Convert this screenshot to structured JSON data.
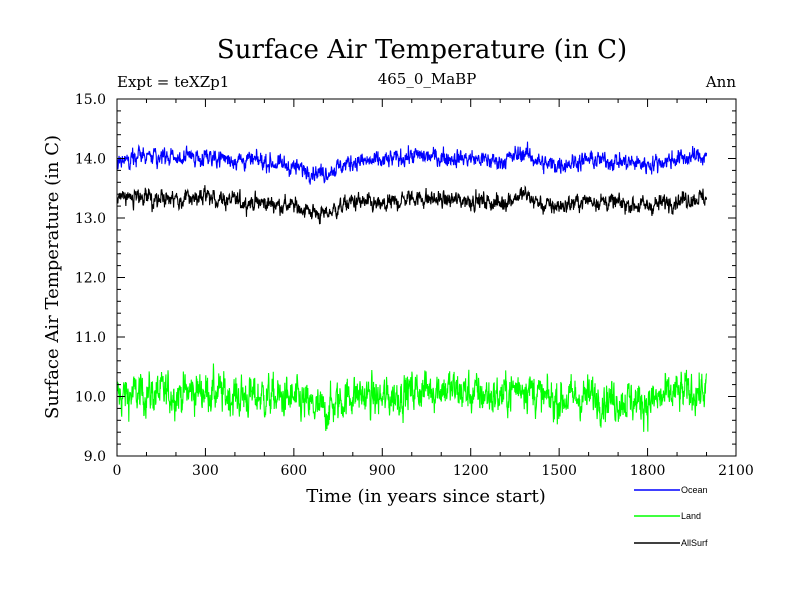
{
  "chart_data": {
    "type": "line",
    "title": "Surface Air Temperature (in C)",
    "subtitle_left": "Expt = teXZp1",
    "subtitle_center": "465_0_MaBP",
    "subtitle_right": "Ann",
    "xlabel": "Time (in years since start)",
    "ylabel": "Surface Air Temperature (in C)",
    "xlim": [
      0,
      2100
    ],
    "ylim": [
      9.0,
      15.0
    ],
    "x_ticks": [
      0,
      300,
      600,
      900,
      1200,
      1500,
      1800,
      2100
    ],
    "x_tick_labels": [
      "0",
      "300",
      "600",
      "900",
      "1200",
      "1500",
      "1800",
      "2100"
    ],
    "y_ticks": [
      9,
      10,
      11,
      12,
      13,
      14,
      15
    ],
    "y_tick_labels": [
      "9.0",
      "10.0",
      "11.0",
      "12.0",
      "13.0",
      "14.0",
      "15.0"
    ],
    "grid": false,
    "legend_position": "bottom-right, below axes",
    "series": [
      {
        "name": "Ocean",
        "color": "#0000ff",
        "x_start": 0,
        "x_end": 2000,
        "n_points": 2000,
        "mean": 13.98,
        "noise_amplitude": 0.15,
        "anchors": [
          [
            0,
            13.95
          ],
          [
            100,
            14.05
          ],
          [
            200,
            14.0
          ],
          [
            300,
            14.05
          ],
          [
            400,
            13.98
          ],
          [
            500,
            13.95
          ],
          [
            600,
            13.85
          ],
          [
            700,
            13.75
          ],
          [
            800,
            13.95
          ],
          [
            900,
            13.95
          ],
          [
            1000,
            14.05
          ],
          [
            1100,
            14.02
          ],
          [
            1200,
            14.0
          ],
          [
            1300,
            13.95
          ],
          [
            1380,
            14.1
          ],
          [
            1450,
            13.9
          ],
          [
            1500,
            13.9
          ],
          [
            1600,
            13.98
          ],
          [
            1700,
            13.95
          ],
          [
            1800,
            13.9
          ],
          [
            1900,
            14.0
          ],
          [
            2000,
            14.05
          ]
        ]
      },
      {
        "name": "Land",
        "color": "#00ff00",
        "x_start": 0,
        "x_end": 2000,
        "n_points": 2000,
        "mean": 10.02,
        "noise_amplitude": 0.35,
        "anchors": [
          [
            0,
            10.0
          ],
          [
            100,
            10.05
          ],
          [
            200,
            10.05
          ],
          [
            300,
            10.1
          ],
          [
            400,
            10.0
          ],
          [
            500,
            10.0
          ],
          [
            600,
            9.95
          ],
          [
            700,
            9.75
          ],
          [
            800,
            10.05
          ],
          [
            900,
            9.95
          ],
          [
            1000,
            10.1
          ],
          [
            1100,
            10.15
          ],
          [
            1200,
            10.05
          ],
          [
            1300,
            10.0
          ],
          [
            1380,
            10.2
          ],
          [
            1450,
            9.95
          ],
          [
            1500,
            9.95
          ],
          [
            1600,
            10.0
          ],
          [
            1700,
            9.95
          ],
          [
            1800,
            9.9
          ],
          [
            1900,
            10.05
          ],
          [
            2000,
            10.1
          ]
        ]
      },
      {
        "name": "AllSurf",
        "color": "#000000",
        "x_start": 0,
        "x_end": 2000,
        "n_points": 2000,
        "mean": 13.28,
        "noise_amplitude": 0.15,
        "anchors": [
          [
            0,
            13.3
          ],
          [
            100,
            13.35
          ],
          [
            200,
            13.3
          ],
          [
            300,
            13.35
          ],
          [
            400,
            13.28
          ],
          [
            500,
            13.25
          ],
          [
            600,
            13.2
          ],
          [
            700,
            13.05
          ],
          [
            800,
            13.28
          ],
          [
            900,
            13.2
          ],
          [
            1000,
            13.35
          ],
          [
            1100,
            13.3
          ],
          [
            1200,
            13.3
          ],
          [
            1300,
            13.25
          ],
          [
            1380,
            13.4
          ],
          [
            1450,
            13.2
          ],
          [
            1500,
            13.2
          ],
          [
            1600,
            13.3
          ],
          [
            1700,
            13.25
          ],
          [
            1800,
            13.2
          ],
          [
            1900,
            13.3
          ],
          [
            2000,
            13.35
          ]
        ]
      }
    ]
  }
}
